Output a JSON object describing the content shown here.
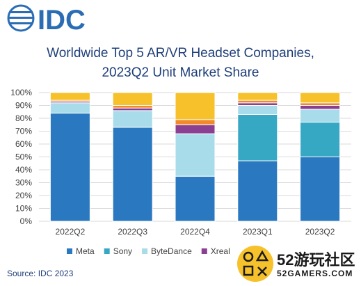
{
  "logo": {
    "text": "IDC",
    "color": "#2a6db5"
  },
  "title": {
    "line1": "Worldwide Top 5 AR/VR Headset Companies,",
    "line2": "2023Q2 Unit Market Share"
  },
  "source": "Source: IDC 2023",
  "watermark": {
    "brand_cn": "52游玩社区",
    "brand_en": "52GAMERS.COM"
  },
  "chart_data": {
    "type": "bar",
    "stacked": true,
    "categories": [
      "2022Q2",
      "2022Q3",
      "2022Q4",
      "2023Q1",
      "2023Q2"
    ],
    "ylim": [
      0,
      100
    ],
    "yticks": [
      "0%",
      "10%",
      "20%",
      "30%",
      "40%",
      "50%",
      "60%",
      "70%",
      "80%",
      "90%",
      "100%"
    ],
    "grid": true,
    "legend_position": "bottom",
    "series": [
      {
        "name": "Meta",
        "color": "#2a78c0",
        "values": [
          84,
          73,
          35,
          47,
          50
        ]
      },
      {
        "name": "Sony",
        "color": "#36a8c4",
        "values": [
          0,
          0,
          0,
          36,
          27
        ]
      },
      {
        "name": "ByteDance",
        "color": "#a8dcea",
        "values": [
          8,
          13,
          33,
          7,
          10
        ]
      },
      {
        "name": "Xreal",
        "color": "#8a3f92",
        "values": [
          1,
          2,
          7,
          2,
          3
        ]
      },
      {
        "name": "",
        "color": "#f08a2a",
        "values": [
          1,
          2,
          4,
          2,
          2
        ]
      },
      {
        "name": "",
        "color": "#f6c12b",
        "values": [
          6,
          10,
          21,
          6,
          8
        ]
      }
    ]
  }
}
